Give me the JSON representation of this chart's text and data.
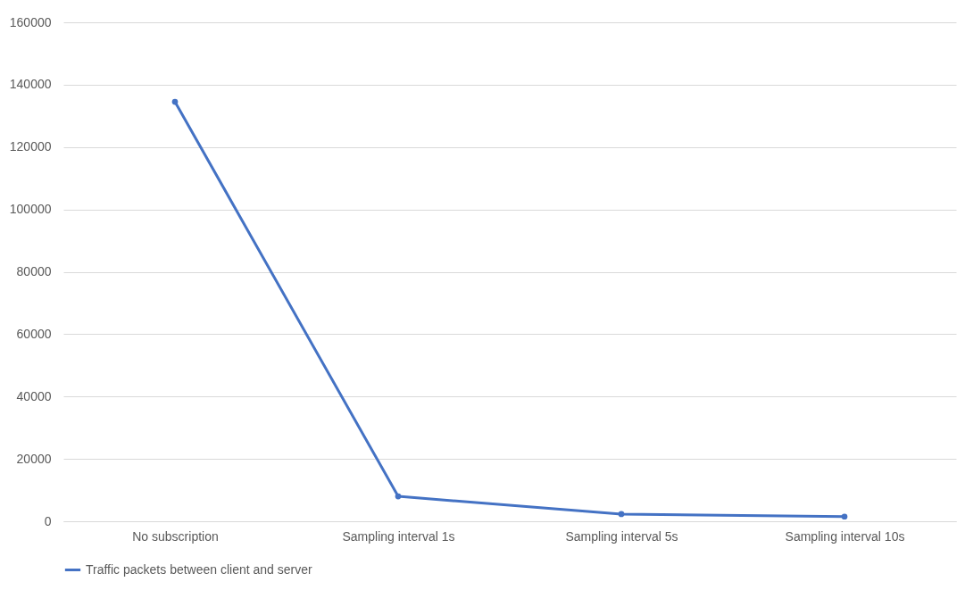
{
  "chart_data": {
    "type": "line",
    "categories": [
      "No subscription",
      "Sampling interval 1s",
      "Sampling interval 5s",
      "Sampling interval 10s"
    ],
    "series": [
      {
        "name": "Traffic packets between client and server",
        "color": "#4472c4",
        "values": [
          134500,
          8000,
          2300,
          1500
        ]
      }
    ],
    "ylim": [
      0,
      160000
    ],
    "yticks": [
      0,
      20000,
      40000,
      60000,
      80000,
      100000,
      120000,
      140000,
      160000
    ],
    "grid": "y",
    "legend": "bottom",
    "marker": "circle",
    "line_style": "solid"
  }
}
